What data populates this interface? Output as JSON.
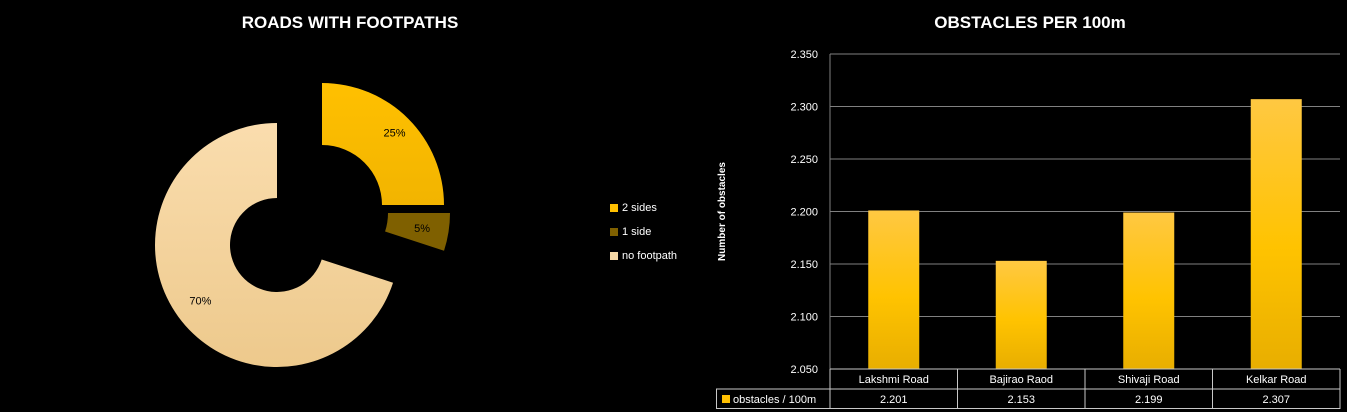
{
  "chart_data": [
    {
      "type": "pie",
      "variant": "exploded-donut",
      "title": "ROADS WITH FOOTPATHS",
      "slices": [
        {
          "label": "2 sides",
          "value": 25,
          "value_label": "25%",
          "color": "#FFC000"
        },
        {
          "label": "1 side",
          "value": 5,
          "value_label": "5%",
          "color": "#7F6000"
        },
        {
          "label": "no footpath",
          "value": 70,
          "value_label": "70%",
          "color": "#F7D9A6"
        }
      ],
      "legend_position": "right"
    },
    {
      "type": "bar",
      "title": "OBSTACLES PER 100m",
      "ylabel": "Number of obstacles",
      "categories": [
        "Lakshmi Road",
        "Bajirao Raod",
        "Shivaji Road",
        "Kelkar Road"
      ],
      "series": [
        {
          "name": "obstacles / 100m",
          "values": [
            2.201,
            2.153,
            2.199,
            2.307
          ],
          "value_labels": [
            "2.201",
            "2.153",
            "2.199",
            "2.307"
          ],
          "color": "#FFC000"
        }
      ],
      "ylim": [
        2.05,
        2.35
      ],
      "yticks": [
        "2.050",
        "2.100",
        "2.150",
        "2.200",
        "2.250",
        "2.300",
        "2.350"
      ],
      "grid": true,
      "data_table": true
    }
  ]
}
